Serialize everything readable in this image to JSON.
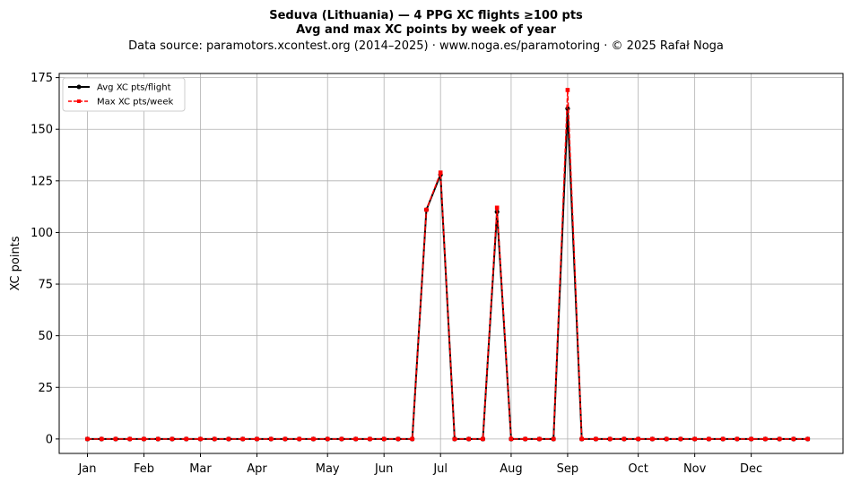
{
  "chart_data": {
    "type": "line",
    "title": "Seduva (Lithuania)  —  4 PPG XC flights ≥100 pts",
    "subtitle": "Avg and max XC points by week of year",
    "source_text": "Data source: paramotors.xcontest.org (2014–2025)  ·  www.noga.es/paramotoring  ·  © 2025 Rafał Noga",
    "xlabel": "",
    "ylabel": "XC points",
    "x_tick_labels": [
      "Jan",
      "Feb",
      "Mar",
      "Apr",
      "May",
      "Jun",
      "Jul",
      "Aug",
      "Sep",
      "Oct",
      "Nov",
      "Dec"
    ],
    "x_tick_weeks": [
      1,
      5,
      9,
      13,
      18,
      22,
      26,
      31,
      35,
      40,
      44,
      48
    ],
    "xlim": [
      -1,
      54.5
    ],
    "ylim": [
      -7,
      177
    ],
    "y_ticks": [
      0,
      25,
      50,
      75,
      100,
      125,
      150,
      175
    ],
    "grid": true,
    "legend_position": "upper-left",
    "x": [
      1,
      2,
      3,
      4,
      5,
      6,
      7,
      8,
      9,
      10,
      11,
      12,
      13,
      14,
      15,
      16,
      17,
      18,
      19,
      20,
      21,
      22,
      23,
      24,
      25,
      26,
      27,
      28,
      29,
      30,
      31,
      32,
      33,
      34,
      35,
      36,
      37,
      38,
      39,
      40,
      41,
      42,
      43,
      44,
      45,
      46,
      47,
      48,
      49,
      50,
      51,
      52
    ],
    "series": [
      {
        "name": "Avg XC pts/flight",
        "color": "#000000",
        "values": [
          0,
          0,
          0,
          0,
          0,
          0,
          0,
          0,
          0,
          0,
          0,
          0,
          0,
          0,
          0,
          0,
          0,
          0,
          0,
          0,
          0,
          0,
          0,
          0,
          111,
          128,
          0,
          0,
          0,
          110,
          0,
          0,
          0,
          0,
          160,
          0,
          0,
          0,
          0,
          0,
          0,
          0,
          0,
          0,
          0,
          0,
          0,
          0,
          0,
          0,
          0,
          0
        ]
      },
      {
        "name": "Max XC pts/week",
        "color": "#ff0000",
        "values": [
          0,
          0,
          0,
          0,
          0,
          0,
          0,
          0,
          0,
          0,
          0,
          0,
          0,
          0,
          0,
          0,
          0,
          0,
          0,
          0,
          0,
          0,
          0,
          0,
          111,
          129,
          0,
          0,
          0,
          112,
          0,
          0,
          0,
          0,
          169,
          0,
          0,
          0,
          0,
          0,
          0,
          0,
          0,
          0,
          0,
          0,
          0,
          0,
          0,
          0,
          0,
          0
        ]
      }
    ]
  }
}
